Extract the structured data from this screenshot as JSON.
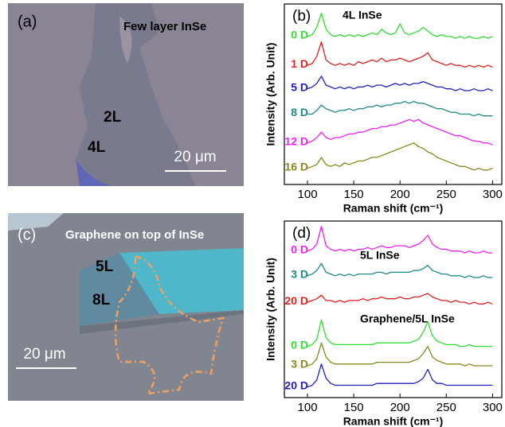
{
  "images": [
    {
      "panel_label": "(a)",
      "title": "Few layer InSe",
      "labels": [
        "2L",
        "4L"
      ],
      "scale_bar": "20 μm"
    },
    {
      "panel_label": "(c)",
      "title": "Graphene on top of InSe",
      "labels": [
        "5L",
        "8L"
      ],
      "scale_bar": "20 μm"
    }
  ],
  "chart_data": [
    {
      "type": "line",
      "panel_label": "(b)",
      "title": "4L InSe",
      "x_label": "Raman shift (cm⁻¹)",
      "y_label": "Intensity (Arb. Unit)",
      "xlim": [
        75,
        310
      ],
      "ylim": [
        0,
        10
      ],
      "xticks": [
        100,
        150,
        200,
        250,
        300
      ],
      "x": [
        100,
        105,
        110,
        115,
        120,
        125,
        130,
        135,
        140,
        145,
        150,
        155,
        160,
        165,
        170,
        175,
        180,
        185,
        190,
        195,
        200,
        205,
        210,
        215,
        220,
        225,
        230,
        235,
        240,
        245,
        250,
        255,
        260,
        265,
        270,
        275,
        280,
        285,
        290,
        295,
        300
      ],
      "series": [
        {
          "name": "0 D",
          "color": "#33dd33",
          "values": [
            8.2,
            8.3,
            8.7,
            9.5,
            8.6,
            8.3,
            8.2,
            8.3,
            8.2,
            8.3,
            8.2,
            8.3,
            8.2,
            8.3,
            8.4,
            8.3,
            8.6,
            8.4,
            8.3,
            8.4,
            8.9,
            8.4,
            8.3,
            8.4,
            8.5,
            8.7,
            8.5,
            8.3,
            8.2,
            8.3,
            8.2,
            8.2,
            8.1,
            8.2,
            8.1,
            8.2,
            8.1,
            8.1,
            8.2,
            8.1,
            8.2
          ]
        },
        {
          "name": "1 D",
          "color": "#dd2222",
          "values": [
            6.6,
            6.7,
            7.1,
            7.9,
            6.9,
            6.7,
            6.6,
            6.7,
            6.6,
            6.7,
            6.6,
            6.8,
            6.7,
            6.8,
            6.9,
            6.8,
            7.0,
            6.8,
            6.9,
            6.9,
            7.0,
            6.9,
            6.8,
            6.9,
            7.0,
            7.1,
            7.3,
            6.9,
            6.8,
            6.7,
            6.6,
            6.7,
            6.6,
            6.6,
            6.5,
            6.6,
            6.5,
            6.6,
            6.5,
            6.6,
            6.5
          ]
        },
        {
          "name": "5 D",
          "color": "#2222bb",
          "values": [
            5.3,
            5.4,
            5.6,
            6.0,
            5.5,
            5.4,
            5.3,
            5.4,
            5.3,
            5.4,
            5.3,
            5.4,
            5.4,
            5.5,
            5.4,
            5.5,
            5.5,
            5.4,
            5.5,
            5.6,
            5.5,
            5.6,
            5.5,
            5.6,
            5.6,
            5.7,
            5.6,
            5.5,
            5.4,
            5.4,
            5.3,
            5.3,
            5.2,
            5.3,
            5.2,
            5.2,
            5.3,
            5.2,
            5.2,
            5.3,
            5.2
          ]
        },
        {
          "name": "8 D",
          "color": "#228888",
          "values": [
            3.9,
            3.9,
            4.1,
            4.4,
            4.2,
            4.1,
            4.0,
            4.1,
            4.1,
            4.2,
            4.1,
            4.2,
            4.2,
            4.3,
            4.3,
            4.4,
            4.3,
            4.4,
            4.4,
            4.5,
            4.5,
            4.6,
            4.5,
            4.6,
            4.5,
            4.5,
            4.4,
            4.3,
            4.2,
            4.2,
            4.1,
            4.0,
            4.0,
            3.9,
            3.9,
            3.9,
            3.8,
            3.9,
            3.8,
            3.8,
            3.8
          ]
        },
        {
          "name": "12 D",
          "color": "#ee22ee",
          "values": [
            2.3,
            2.4,
            2.6,
            2.9,
            2.6,
            2.5,
            2.6,
            2.6,
            2.7,
            2.8,
            2.8,
            2.9,
            2.9,
            3.0,
            3.1,
            3.1,
            3.2,
            3.2,
            3.3,
            3.3,
            3.4,
            3.5,
            3.6,
            3.5,
            3.6,
            3.4,
            3.3,
            3.2,
            3.1,
            3.0,
            2.9,
            2.8,
            2.7,
            2.7,
            2.6,
            2.5,
            2.4,
            2.4,
            2.3,
            2.3,
            2.2
          ]
        },
        {
          "name": "16 D",
          "color": "#888822",
          "values": [
            0.9,
            1.0,
            1.1,
            1.5,
            1.1,
            1.0,
            1.1,
            1.0,
            1.2,
            1.1,
            1.2,
            1.3,
            1.3,
            1.4,
            1.5,
            1.5,
            1.6,
            1.7,
            1.8,
            1.9,
            2.0,
            2.1,
            2.2,
            2.3,
            2.1,
            2.0,
            1.8,
            1.7,
            1.5,
            1.4,
            1.3,
            1.2,
            1.1,
            1.0,
            1.0,
            0.9,
            0.8,
            0.9,
            0.8,
            0.8,
            0.9
          ]
        }
      ]
    },
    {
      "type": "line",
      "panel_label": "(d)",
      "title": "5L InSe",
      "annotation": "Graphene/5L InSe",
      "x_label": "Raman shift (cm⁻¹)",
      "y_label": "Intensity (Arb. Unit)",
      "xlim": [
        75,
        310
      ],
      "ylim": [
        0,
        10
      ],
      "xticks": [
        100,
        150,
        200,
        250,
        300
      ],
      "x": [
        100,
        105,
        110,
        115,
        120,
        125,
        130,
        135,
        140,
        145,
        150,
        155,
        160,
        165,
        170,
        175,
        180,
        185,
        190,
        195,
        200,
        205,
        210,
        215,
        220,
        225,
        230,
        235,
        240,
        245,
        250,
        255,
        260,
        265,
        270,
        275,
        280,
        285,
        290,
        295,
        300
      ],
      "series": [
        {
          "name": "0 D",
          "color": "#ee22ee",
          "values": [
            8.3,
            8.4,
            8.7,
            9.7,
            8.6,
            8.4,
            8.3,
            8.4,
            8.3,
            8.4,
            8.3,
            8.4,
            8.4,
            8.5,
            8.4,
            8.5,
            8.6,
            8.5,
            8.5,
            8.6,
            8.6,
            8.6,
            8.5,
            8.6,
            8.7,
            8.9,
            9.2,
            8.7,
            8.5,
            8.4,
            8.4,
            8.3,
            8.3,
            8.3,
            8.2,
            8.3,
            8.2,
            8.2,
            8.3,
            8.2,
            8.2
          ]
        },
        {
          "name": "3 D",
          "color": "#228888",
          "values": [
            6.9,
            7.0,
            7.2,
            7.6,
            7.1,
            7.0,
            6.9,
            7.0,
            6.9,
            7.0,
            6.9,
            7.0,
            7.0,
            7.0,
            7.0,
            7.1,
            7.1,
            7.0,
            7.1,
            7.1,
            7.1,
            7.1,
            7.1,
            7.2,
            7.2,
            7.3,
            7.5,
            7.2,
            7.1,
            7.0,
            7.0,
            6.9,
            6.9,
            6.9,
            6.8,
            6.9,
            6.8,
            6.8,
            6.9,
            6.8,
            6.8
          ]
        },
        {
          "name": "20 D",
          "color": "#dd2222",
          "values": [
            5.4,
            5.5,
            5.6,
            5.8,
            5.5,
            5.5,
            5.4,
            5.5,
            5.4,
            5.5,
            5.5,
            5.5,
            5.6,
            5.5,
            5.6,
            5.6,
            5.7,
            5.6,
            5.6,
            5.6,
            5.7,
            5.6,
            5.6,
            5.7,
            5.7,
            5.8,
            5.9,
            5.7,
            5.6,
            5.5,
            5.5,
            5.4,
            5.5,
            5.4,
            5.4,
            5.3,
            5.4,
            5.3,
            5.3,
            5.4,
            5.3
          ]
        },
        {
          "name": "0 D",
          "color": "#33dd33",
          "values": [
            2.9,
            3.0,
            3.3,
            4.4,
            3.4,
            3.1,
            3.0,
            3.0,
            3.0,
            3.0,
            3.0,
            3.0,
            3.0,
            3.0,
            3.0,
            3.1,
            3.1,
            3.1,
            3.1,
            3.1,
            3.1,
            3.1,
            3.1,
            3.2,
            3.3,
            3.7,
            4.3,
            3.5,
            3.2,
            3.1,
            3.0,
            3.0,
            3.0,
            2.9,
            2.9,
            3.0,
            2.9,
            2.9,
            2.9,
            2.9,
            2.9
          ]
        },
        {
          "name": "3 D",
          "color": "#888822",
          "values": [
            1.8,
            1.9,
            2.2,
            3.1,
            2.3,
            2.0,
            1.9,
            1.9,
            1.9,
            1.9,
            1.9,
            1.9,
            1.9,
            1.9,
            1.9,
            2.0,
            2.0,
            2.0,
            2.0,
            2.0,
            2.0,
            2.0,
            2.0,
            2.1,
            2.2,
            2.5,
            2.9,
            2.3,
            2.1,
            2.0,
            1.9,
            1.9,
            1.9,
            1.9,
            1.8,
            1.9,
            1.8,
            1.8,
            1.8,
            1.8,
            1.8
          ]
        },
        {
          "name": "20 D",
          "color": "#2222bb",
          "values": [
            0.6,
            0.7,
            1.0,
            1.9,
            1.1,
            0.8,
            0.7,
            0.7,
            0.7,
            0.7,
            0.7,
            0.7,
            0.7,
            0.7,
            0.7,
            0.8,
            0.8,
            0.8,
            0.8,
            0.8,
            0.8,
            0.8,
            0.8,
            0.8,
            0.9,
            1.1,
            1.6,
            1.0,
            0.8,
            0.8,
            0.7,
            0.7,
            0.7,
            0.7,
            0.7,
            0.7,
            0.7,
            0.7,
            0.7,
            0.7,
            0.7
          ]
        }
      ]
    }
  ]
}
